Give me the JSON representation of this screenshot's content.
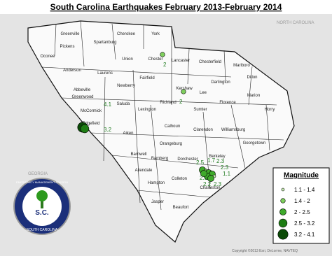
{
  "title": "South Carolina Earthquakes February 2013-February 2014",
  "map": {
    "counties": [
      "Greenville",
      "Cherokee",
      "York",
      "Pickens",
      "Spartanburg",
      "Oconee",
      "Union",
      "Chester",
      "Lancaster",
      "Chesterfield",
      "Marlboro",
      "Anderson",
      "Laurens",
      "Fairfield",
      "Darlington",
      "Dillon",
      "Abbeville",
      "Newberry",
      "Kershaw",
      "Lee",
      "Marion",
      "Greenwood",
      "Richland",
      "Florence",
      "McCormick",
      "Saluda",
      "Lexington",
      "Sumter",
      "Horry",
      "Edgefield",
      "Calhoun",
      "Clarendon",
      "Aiken",
      "Williamsburg",
      "Orangeburg",
      "Georgetown",
      "Barnwell",
      "Bamberg",
      "Dorchester",
      "Berkeley",
      "Allendale",
      "Colleton",
      "Charleston",
      "Hampton",
      "Jasper",
      "Beaufort"
    ],
    "neighbors": [
      "GEORGIA",
      "NORTH CAROLINA"
    ],
    "copyright": "Copyright ©2013 Esri, DeLorme, NAVTEQ"
  },
  "earthquakes": [
    {
      "magnitude": 2
    },
    {
      "magnitude": 2
    },
    {
      "magnitude": 4.1
    },
    {
      "magnitude": 3.2
    },
    {
      "magnitude": 2.5
    },
    {
      "magnitude": 1.7
    },
    {
      "magnitude": 2.3
    },
    {
      "magnitude": 2.3
    },
    {
      "magnitude": 1.1
    },
    {
      "magnitude": 2.2
    },
    {
      "magnitude": 2.3
    },
    {
      "magnitude": 2.1
    }
  ],
  "legend": {
    "title": "Magnitude",
    "classes": [
      {
        "label": "1.1 - 1.4",
        "color": "#c9efb4"
      },
      {
        "label": "1.4 - 2",
        "color": "#7fcf5d"
      },
      {
        "label": "2 - 2.5",
        "color": "#3fa92b"
      },
      {
        "label": "2.5 - 3.2",
        "color": "#1e7d14"
      },
      {
        "label": "3.2 - 4.1",
        "color": "#0b4a07"
      }
    ]
  },
  "logo": {
    "top": "EMERGENCY MANAGEMENT DIVISION",
    "center": "S.C.",
    "bottom": "SOUTH CAROLINA"
  }
}
